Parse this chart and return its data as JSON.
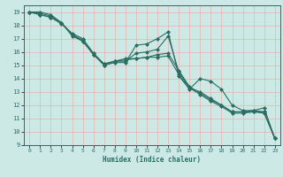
{
  "title": "",
  "xlabel": "Humidex (Indice chaleur)",
  "xlim": [
    -0.5,
    23.5
  ],
  "ylim": [
    9,
    19.5
  ],
  "yticks": [
    9,
    10,
    11,
    12,
    13,
    14,
    15,
    16,
    17,
    18,
    19
  ],
  "xticks": [
    0,
    1,
    2,
    3,
    4,
    5,
    6,
    7,
    8,
    9,
    10,
    11,
    12,
    13,
    14,
    15,
    16,
    17,
    18,
    19,
    20,
    21,
    22,
    23
  ],
  "line_color": "#2a6e63",
  "bg_color": "#cce9e5",
  "grid_color": "#e8b0b0",
  "series": [
    [
      19,
      19,
      18.8,
      18.2,
      17.2,
      16.8,
      15.8,
      15.0,
      15.2,
      15.2,
      16.5,
      16.6,
      17.0,
      17.5,
      14.2,
      13.2,
      14.0,
      13.8,
      13.2,
      12.0,
      11.6,
      11.6,
      11.8,
      9.5
    ],
    [
      19,
      18.9,
      18.7,
      18.2,
      17.3,
      16.9,
      15.8,
      15.1,
      15.3,
      15.3,
      15.9,
      16.0,
      16.2,
      17.2,
      14.5,
      13.3,
      13.0,
      12.5,
      12.0,
      11.5,
      11.5,
      11.5,
      11.5,
      9.5
    ],
    [
      19,
      18.8,
      18.6,
      18.1,
      17.4,
      17.0,
      15.9,
      15.1,
      15.3,
      15.4,
      15.5,
      15.6,
      15.8,
      15.9,
      14.6,
      13.4,
      12.9,
      12.4,
      12.0,
      11.5,
      11.5,
      11.6,
      11.5,
      9.5
    ],
    [
      19,
      18.8,
      18.6,
      18.2,
      17.3,
      16.8,
      15.9,
      15.0,
      15.3,
      15.5,
      15.5,
      15.6,
      15.6,
      15.7,
      14.3,
      13.3,
      12.8,
      12.3,
      11.9,
      11.4,
      11.4,
      11.5,
      11.4,
      9.5
    ]
  ],
  "tick_fontsize": 4.5,
  "xlabel_fontsize": 5.5,
  "marker_size": 2.0,
  "linewidth": 0.8
}
